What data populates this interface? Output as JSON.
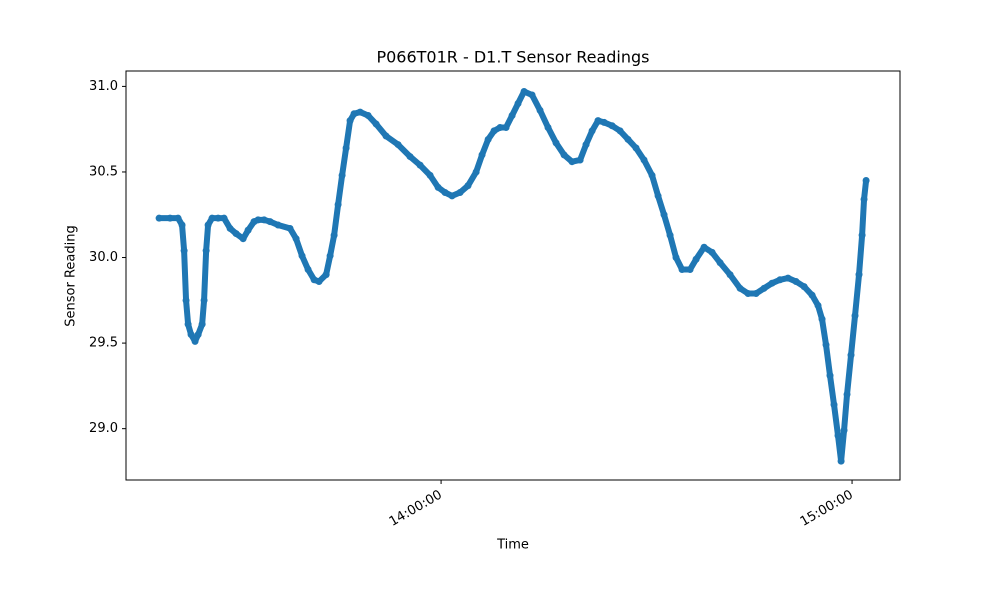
{
  "chart_data": {
    "type": "line",
    "title": "P066T01R - D1.T Sensor Readings",
    "x_label": "Time",
    "y_label": "Sensor Reading",
    "xlim": [
      "13:14:00",
      "15:07:00"
    ],
    "xticks": [
      "14:00:00",
      "15:00:00"
    ],
    "ylim": [
      28.7,
      31.09
    ],
    "yticks": [
      {
        "value": 29,
        "label": "29.0"
      },
      29.5,
      {
        "value": 30,
        "label": "30.0"
      },
      30.5,
      {
        "value": 31,
        "label": "31.0"
      }
    ],
    "grid": false,
    "color": "#1f77b4",
    "x": [
      "13:18:50",
      "13:20:26",
      "13:21:36",
      "13:22:11",
      "13:22:29",
      "13:22:46",
      "13:23:04",
      "13:23:30",
      "13:24:05",
      "13:24:32",
      "13:25:07",
      "13:25:24",
      "13:25:42",
      "13:25:59",
      "13:26:34",
      "13:27:27",
      "13:28:19",
      "13:29:12",
      "13:30:04",
      "13:31:06",
      "13:31:50",
      "13:32:42",
      "13:33:17",
      "13:34:10",
      "13:35:02",
      "13:36:12",
      "13:37:57",
      "13:38:50",
      "13:39:42",
      "13:40:35",
      "13:41:28",
      "13:42:11",
      "13:43:13",
      "13:43:48",
      "13:44:23",
      "13:44:58",
      "13:45:33",
      "13:46:08",
      "13:46:43",
      "13:47:18",
      "13:48:11",
      "13:49:21",
      "13:50:31",
      "13:51:58",
      "13:53:43",
      "13:55:28",
      "13:56:56",
      "13:58:24",
      "13:59:34",
      "14:00:35",
      "14:01:36",
      "14:02:46",
      "14:03:56",
      "14:05:07",
      "14:05:59",
      "14:06:52",
      "14:07:44",
      "14:08:37",
      "14:09:29",
      "14:10:22",
      "14:11:14",
      "14:12:07",
      "14:13:17",
      "14:14:27",
      "14:15:37",
      "14:16:47",
      "14:17:57",
      "14:19:07",
      "14:20:18",
      "14:21:10",
      "14:22:03",
      "14:22:55",
      "14:23:48",
      "14:24:58",
      "14:26:08",
      "14:27:18",
      "14:28:28",
      "14:29:38",
      "14:30:48",
      "14:31:41",
      "14:32:33",
      "14:33:26",
      "14:34:18",
      "14:35:11",
      "14:36:21",
      "14:37:14",
      "14:38:24",
      "14:39:34",
      "14:40:44",
      "14:42:11",
      "14:43:39",
      "14:44:49",
      "14:45:59",
      "14:47:09",
      "14:48:19",
      "14:49:29",
      "14:50:39",
      "14:51:49",
      "14:53:00",
      "14:54:10",
      "14:55:02",
      "14:55:37",
      "14:56:12",
      "14:56:47",
      "14:57:22",
      "14:57:57",
      "14:58:24",
      "14:58:50",
      "14:59:16",
      "14:59:51",
      "15:00:26",
      "15:01:01",
      "15:01:28",
      "15:01:45",
      "15:02:03"
    ],
    "values": [
      30.23,
      30.23,
      30.23,
      30.19,
      30.04,
      29.75,
      29.61,
      29.55,
      29.51,
      29.55,
      29.61,
      29.75,
      30.04,
      30.19,
      30.23,
      30.23,
      30.23,
      30.17,
      30.14,
      30.11,
      30.16,
      30.21,
      30.22,
      30.22,
      30.21,
      30.19,
      30.17,
      30.11,
      30.01,
      29.93,
      29.87,
      29.86,
      29.9,
      30.01,
      30.13,
      30.31,
      30.48,
      30.64,
      30.8,
      30.84,
      30.85,
      30.83,
      30.78,
      30.71,
      30.66,
      30.59,
      30.54,
      30.48,
      30.41,
      30.38,
      30.36,
      30.38,
      30.42,
      30.5,
      30.6,
      30.69,
      30.74,
      30.76,
      30.76,
      30.83,
      30.9,
      30.97,
      30.95,
      30.86,
      30.76,
      30.67,
      30.6,
      30.56,
      30.57,
      30.66,
      30.74,
      30.8,
      30.79,
      30.77,
      30.74,
      30.69,
      30.64,
      30.57,
      30.48,
      30.36,
      30.25,
      30.13,
      30.0,
      29.93,
      29.93,
      29.99,
      30.06,
      30.03,
      29.97,
      29.9,
      29.82,
      29.79,
      29.79,
      29.82,
      29.85,
      29.87,
      29.88,
      29.86,
      29.83,
      29.78,
      29.72,
      29.64,
      29.49,
      29.31,
      29.14,
      28.96,
      28.81,
      28.99,
      29.2,
      29.43,
      29.66,
      29.9,
      30.13,
      30.34,
      30.45
    ]
  }
}
